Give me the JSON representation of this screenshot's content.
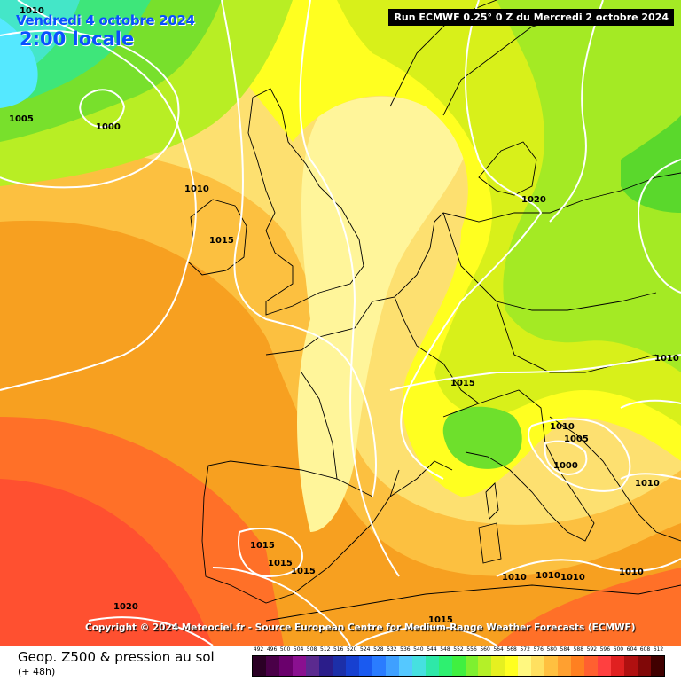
{
  "header": {
    "date": "Vendredi 4 octobre 2024",
    "time": "2:00 locale",
    "run_info": "Run ECMWF 0.25° 0 Z du Mercredi 2 octobre 2024"
  },
  "copyright": "Copyright © 2024 Meteociel.fr - Source European Centre for Medium-Range Weather Forecasts (ECMWF)",
  "footer": {
    "title": "Geop. Z500 & pression au sol",
    "subtitle": "(+ 48h)"
  },
  "isobar_labels": [
    "1010",
    "1005",
    "1000",
    "1010",
    "1015",
    "1020",
    "1015",
    "1010",
    "1010",
    "1005",
    "1000",
    "1010",
    "1015",
    "1015",
    "1015",
    "1020",
    "1015",
    "1010",
    "1010",
    "1010",
    "1010"
  ],
  "scale": {
    "ticks": [
      "492",
      "496",
      "500",
      "504",
      "508",
      "512",
      "516",
      "520",
      "524",
      "528",
      "532",
      "536",
      "540",
      "544",
      "548",
      "552",
      "556",
      "560",
      "564",
      "568",
      "572",
      "576",
      "580",
      "584",
      "588",
      "592",
      "596",
      "600",
      "604",
      "608",
      "612"
    ],
    "colors": [
      "#2b0025",
      "#4a0048",
      "#6a006c",
      "#8a1090",
      "#5b2a8f",
      "#2b1d8a",
      "#1c2fa8",
      "#1740d0",
      "#1a5af0",
      "#2a7cff",
      "#3fa0ff",
      "#55c8ff",
      "#46e0e0",
      "#2ee8a8",
      "#2ef070",
      "#40f040",
      "#7ef030",
      "#b4f028",
      "#e6f020",
      "#ffff20",
      "#fff880",
      "#ffe060",
      "#ffc040",
      "#ffa030",
      "#ff8020",
      "#ff6030",
      "#ff4040",
      "#e02020",
      "#b01010",
      "#800808",
      "#400000"
    ]
  }
}
